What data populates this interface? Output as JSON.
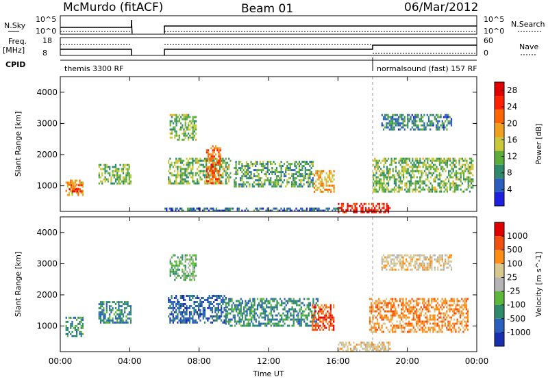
{
  "header": {
    "station": "McMurdo (fitACF)",
    "beam": "Beam 01",
    "date": "06/Mar/2012"
  },
  "side_labels": {
    "nsky": "N.Sky",
    "nsky_hi": "10^5",
    "nsky_lo": "10^0",
    "nsearch": "N.Search",
    "nsearch_hi": "10^5",
    "nsearch_lo": "10^0",
    "freq": "Freq.",
    "freq_unit": "[MHz]",
    "freq_hi": "18",
    "freq_lo": "8",
    "nave": "Nave",
    "nave_hi": "60",
    "nave_lo": "0",
    "cpid": "CPID"
  },
  "modes": [
    {
      "label": "themis 3300 RF",
      "start_hour": 0
    },
    {
      "label": "normalsound (fast) 157 RF",
      "start_hour": 18
    }
  ],
  "colors": {
    "power": [
      "#1f1fe0",
      "#2a5fc0",
      "#2e8a6a",
      "#5cae3a",
      "#c8c83a",
      "#f0a020",
      "#ff6600",
      "#ff2000",
      "#e00000"
    ],
    "velocity": [
      "#1a2fb0",
      "#2a5fc0",
      "#2e8a6a",
      "#5cb83a",
      "#b4b4b4",
      "#d8c890",
      "#ff8c14",
      "#f05010",
      "#e00000"
    ]
  },
  "chart_data": [
    {
      "type": "heatmap",
      "panel": "power",
      "ylabel": "Slant Range [km]",
      "ylim": [
        180,
        4500
      ],
      "yticks": [
        1000,
        2000,
        3000,
        4000
      ],
      "xlim": [
        0,
        24
      ],
      "xticks": [
        0,
        4,
        8,
        12,
        16,
        20,
        24
      ],
      "xticklabels": [
        "00:00",
        "04:00",
        "08:00",
        "12:00",
        "16:00",
        "20:00",
        "00:00"
      ],
      "colorbar_label": "Power [dB]",
      "colorbar_ticks": [
        4,
        8,
        12,
        16,
        20,
        24,
        28
      ],
      "colorbar_range": [
        0,
        30
      ],
      "data_gap": [
        4.1,
        6.0
      ],
      "regions": [
        {
          "t0": 0.3,
          "t1": 1.3,
          "r0": 700,
          "r1": 1200,
          "v": 18
        },
        {
          "t0": 0.5,
          "t1": 1.2,
          "r0": 800,
          "r1": 1050,
          "v": 24
        },
        {
          "t0": 2.2,
          "t1": 4.1,
          "r0": 1100,
          "r1": 1700,
          "v": 12
        },
        {
          "t0": 6.2,
          "t1": 9.8,
          "r0": 1100,
          "r1": 1900,
          "v": 12
        },
        {
          "t0": 8.4,
          "t1": 9.2,
          "r0": 1100,
          "r1": 2300,
          "v": 22
        },
        {
          "t0": 6.3,
          "t1": 7.8,
          "r0": 2500,
          "r1": 3300,
          "v": 12
        },
        {
          "t0": 10.0,
          "t1": 14.6,
          "r0": 1000,
          "r1": 1800,
          "v": 10
        },
        {
          "t0": 14.6,
          "t1": 15.8,
          "r0": 800,
          "r1": 1500,
          "v": 18
        },
        {
          "t0": 16.0,
          "t1": 19.0,
          "r0": 180,
          "r1": 450,
          "v": 26
        },
        {
          "t0": 18.0,
          "t1": 23.8,
          "r0": 800,
          "r1": 1900,
          "v": 12
        },
        {
          "t0": 18.5,
          "t1": 22.5,
          "r0": 2800,
          "r1": 3300,
          "v": 8
        },
        {
          "t0": 6.0,
          "t1": 16.0,
          "r0": 180,
          "r1": 300,
          "v": 6
        }
      ]
    },
    {
      "type": "heatmap",
      "panel": "velocity",
      "ylabel": "Slant Range [km]",
      "ylim": [
        180,
        4500
      ],
      "yticks": [
        1000,
        2000,
        3000,
        4000
      ],
      "xlim": [
        0,
        24
      ],
      "xticks": [
        0,
        4,
        8,
        12,
        16,
        20,
        24
      ],
      "xticklabels": [
        "00:00",
        "04:00",
        "08:00",
        "12:00",
        "16:00",
        "20:00",
        "00:00"
      ],
      "xlabel": "Time UT",
      "colorbar_label": "Velocity [m s^-1]",
      "colorbar_ticks": [
        "1000",
        "500",
        "100",
        "25",
        "-25",
        "-100",
        "-500",
        "-1000"
      ],
      "data_gap": [
        4.1,
        6.0
      ],
      "regions": [
        {
          "t0": 0.3,
          "t1": 1.3,
          "r0": 700,
          "r1": 1300,
          "v": 2
        },
        {
          "t0": 2.2,
          "t1": 4.1,
          "r0": 1100,
          "r1": 1800,
          "v": 2
        },
        {
          "t0": 6.2,
          "t1": 9.5,
          "r0": 1100,
          "r1": 2000,
          "v": 1
        },
        {
          "t0": 6.3,
          "t1": 7.8,
          "r0": 2500,
          "r1": 3300,
          "v": 3
        },
        {
          "t0": 9.5,
          "t1": 14.8,
          "r0": 1000,
          "r1": 1900,
          "v": 2
        },
        {
          "t0": 14.5,
          "t1": 15.8,
          "r0": 900,
          "r1": 1700,
          "v": 7
        },
        {
          "t0": 16.0,
          "t1": 19.0,
          "r0": 180,
          "r1": 500,
          "v": 5
        },
        {
          "t0": 17.8,
          "t1": 23.5,
          "r0": 800,
          "r1": 1900,
          "v": 6
        },
        {
          "t0": 18.5,
          "t1": 22.5,
          "r0": 2800,
          "r1": 3300,
          "v": 5
        }
      ]
    }
  ]
}
